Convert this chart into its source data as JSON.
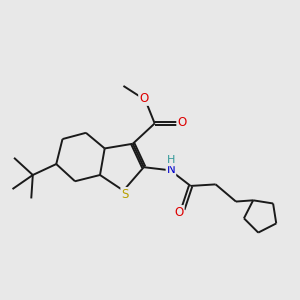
{
  "background_color": "#e8e8e8",
  "bond_color": "#1a1a1a",
  "atom_colors": {
    "S": "#b8a000",
    "N": "#0000cc",
    "O": "#dd0000",
    "H": "#339999",
    "C": "#1a1a1a"
  },
  "figsize": [
    3.0,
    3.0
  ],
  "dpi": 100,
  "lw": 1.4
}
